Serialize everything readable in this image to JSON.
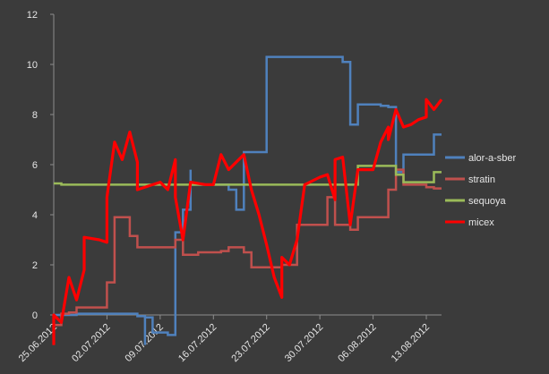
{
  "chart_data": {
    "type": "line",
    "title": "",
    "xlabel": "",
    "ylabel": "",
    "ylim": [
      0,
      12
    ],
    "yticks": [
      0,
      2,
      4,
      6,
      8,
      10,
      12
    ],
    "xlim": [
      "2012-06-25",
      "2012-08-15"
    ],
    "xtick_labels": [
      "25.06.2012",
      "02.07.2012",
      "09.07.2012",
      "16.07.2012",
      "23.07.2012",
      "30.07.2012",
      "06.08.2012",
      "13.08.2012"
    ],
    "xtick_dates": [
      "2012-06-25",
      "2012-07-02",
      "2012-07-09",
      "2012-07-16",
      "2012-07-23",
      "2012-07-30",
      "2012-08-06",
      "2012-08-13"
    ],
    "grid": false,
    "legend_position": "right",
    "background": "#3b3b3b",
    "text_color": "#e6e6e6",
    "series": [
      {
        "name": "alor-a-sber",
        "color": "#4f81bd",
        "step": true,
        "points": [
          [
            "2012-06-25",
            -0.5
          ],
          [
            "2012-06-25",
            0.0
          ],
          [
            "2012-06-27",
            0.0
          ],
          [
            "2012-06-28",
            0.05
          ],
          [
            "2012-07-05",
            0.05
          ],
          [
            "2012-07-06",
            -0.05
          ],
          [
            "2012-07-07",
            -1.2
          ],
          [
            "2012-07-07",
            -0.1
          ],
          [
            "2012-07-08",
            -0.7
          ],
          [
            "2012-07-09",
            -0.7
          ],
          [
            "2012-07-10",
            -0.8
          ],
          [
            "2012-07-11",
            3.3
          ],
          [
            "2012-07-12",
            3.1
          ],
          [
            "2012-07-12",
            4.2
          ],
          [
            "2012-07-13",
            5.8
          ],
          [
            "2012-07-13",
            5.2
          ],
          [
            "2012-07-17",
            5.2
          ],
          [
            "2012-07-18",
            5.0
          ],
          [
            "2012-07-19",
            4.2
          ],
          [
            "2012-07-20",
            6.5
          ],
          [
            "2012-07-23",
            6.5
          ],
          [
            "2012-07-23",
            10.3
          ],
          [
            "2012-08-01",
            10.3
          ],
          [
            "2012-08-02",
            10.1
          ],
          [
            "2012-08-03",
            7.6
          ],
          [
            "2012-08-04",
            8.4
          ],
          [
            "2012-08-07",
            8.35
          ],
          [
            "2012-08-08",
            8.3
          ],
          [
            "2012-08-09",
            5.7
          ],
          [
            "2012-08-10",
            6.4
          ],
          [
            "2012-08-13",
            6.4
          ],
          [
            "2012-08-14",
            7.2
          ],
          [
            "2012-08-15",
            7.2
          ]
        ]
      },
      {
        "name": "stratin",
        "color": "#c0504d",
        "step": true,
        "points": [
          [
            "2012-06-25",
            -0.4
          ],
          [
            "2012-06-26",
            0.05
          ],
          [
            "2012-06-27",
            0.1
          ],
          [
            "2012-06-28",
            0.3
          ],
          [
            "2012-07-01",
            0.3
          ],
          [
            "2012-07-02",
            1.3
          ],
          [
            "2012-07-03",
            3.9
          ],
          [
            "2012-07-04",
            3.9
          ],
          [
            "2012-07-05",
            3.15
          ],
          [
            "2012-07-06",
            2.7
          ],
          [
            "2012-07-10",
            2.7
          ],
          [
            "2012-07-11",
            3.0
          ],
          [
            "2012-07-12",
            2.4
          ],
          [
            "2012-07-14",
            2.5
          ],
          [
            "2012-07-16",
            2.5
          ],
          [
            "2012-07-17",
            2.55
          ],
          [
            "2012-07-18",
            2.7
          ],
          [
            "2012-07-20",
            2.5
          ],
          [
            "2012-07-21",
            1.9
          ],
          [
            "2012-07-25",
            2.0
          ],
          [
            "2012-07-27",
            3.6
          ],
          [
            "2012-07-30",
            3.6
          ],
          [
            "2012-07-31",
            4.7
          ],
          [
            "2012-08-01",
            3.6
          ],
          [
            "2012-08-03",
            3.4
          ],
          [
            "2012-08-04",
            3.9
          ],
          [
            "2012-08-07",
            3.9
          ],
          [
            "2012-08-08",
            5.0
          ],
          [
            "2012-08-09",
            5.8
          ],
          [
            "2012-08-10",
            5.2
          ],
          [
            "2012-08-13",
            5.1
          ],
          [
            "2012-08-14",
            5.05
          ],
          [
            "2012-08-15",
            5.05
          ]
        ]
      },
      {
        "name": "sequoya",
        "color": "#9bbb59",
        "step": true,
        "points": [
          [
            "2012-06-25",
            5.25
          ],
          [
            "2012-06-26",
            5.2
          ],
          [
            "2012-07-10",
            5.2
          ],
          [
            "2012-07-11",
            5.2
          ],
          [
            "2012-07-30",
            5.2
          ],
          [
            "2012-07-31",
            5.2
          ],
          [
            "2012-08-03",
            5.2
          ],
          [
            "2012-08-04",
            5.95
          ],
          [
            "2012-08-08",
            5.95
          ],
          [
            "2012-08-09",
            5.6
          ],
          [
            "2012-08-10",
            5.3
          ],
          [
            "2012-08-13",
            5.3
          ],
          [
            "2012-08-14",
            5.7
          ],
          [
            "2012-08-15",
            5.7
          ]
        ]
      },
      {
        "name": "micex",
        "color": "#ff0000",
        "step": false,
        "points": [
          [
            "2012-06-25",
            -1.2
          ],
          [
            "2012-06-25",
            0.0
          ],
          [
            "2012-06-26",
            -0.3
          ],
          [
            "2012-06-27",
            1.5
          ],
          [
            "2012-06-28",
            0.6
          ],
          [
            "2012-06-29",
            1.8
          ],
          [
            "2012-06-29",
            3.1
          ],
          [
            "2012-07-01",
            3.0
          ],
          [
            "2012-07-02",
            2.9
          ],
          [
            "2012-07-02",
            4.7
          ],
          [
            "2012-07-03",
            6.9
          ],
          [
            "2012-07-04",
            6.2
          ],
          [
            "2012-07-05",
            7.3
          ],
          [
            "2012-07-06",
            6.1
          ],
          [
            "2012-07-06",
            5.0
          ],
          [
            "2012-07-08",
            5.2
          ],
          [
            "2012-07-09",
            5.3
          ],
          [
            "2012-07-10",
            5.0
          ],
          [
            "2012-07-11",
            6.2
          ],
          [
            "2012-07-11",
            4.7
          ],
          [
            "2012-07-12",
            3.0
          ],
          [
            "2012-07-13",
            5.3
          ],
          [
            "2012-07-15",
            5.2
          ],
          [
            "2012-07-16",
            5.2
          ],
          [
            "2012-07-17",
            6.4
          ],
          [
            "2012-07-18",
            5.8
          ],
          [
            "2012-07-19",
            6.1
          ],
          [
            "2012-07-20",
            6.4
          ],
          [
            "2012-07-21",
            5.0
          ],
          [
            "2012-07-22",
            4.0
          ],
          [
            "2012-07-23",
            2.8
          ],
          [
            "2012-07-24",
            1.5
          ],
          [
            "2012-07-25",
            0.7
          ],
          [
            "2012-07-25",
            2.3
          ],
          [
            "2012-07-26",
            2.0
          ],
          [
            "2012-07-27",
            3.0
          ],
          [
            "2012-07-28",
            5.2
          ],
          [
            "2012-07-30",
            5.5
          ],
          [
            "2012-07-31",
            5.6
          ],
          [
            "2012-08-01",
            4.6
          ],
          [
            "2012-08-01",
            6.2
          ],
          [
            "2012-08-02",
            6.3
          ],
          [
            "2012-08-03",
            3.6
          ],
          [
            "2012-08-04",
            5.8
          ],
          [
            "2012-08-06",
            5.8
          ],
          [
            "2012-08-07",
            6.9
          ],
          [
            "2012-08-08",
            7.5
          ],
          [
            "2012-08-08",
            7.0
          ],
          [
            "2012-08-09",
            8.2
          ],
          [
            "2012-08-10",
            7.5
          ],
          [
            "2012-08-11",
            7.6
          ],
          [
            "2012-08-12",
            7.8
          ],
          [
            "2012-08-13",
            7.9
          ],
          [
            "2012-08-13",
            8.6
          ],
          [
            "2012-08-14",
            8.2
          ],
          [
            "2012-08-15",
            8.6
          ]
        ]
      }
    ]
  }
}
